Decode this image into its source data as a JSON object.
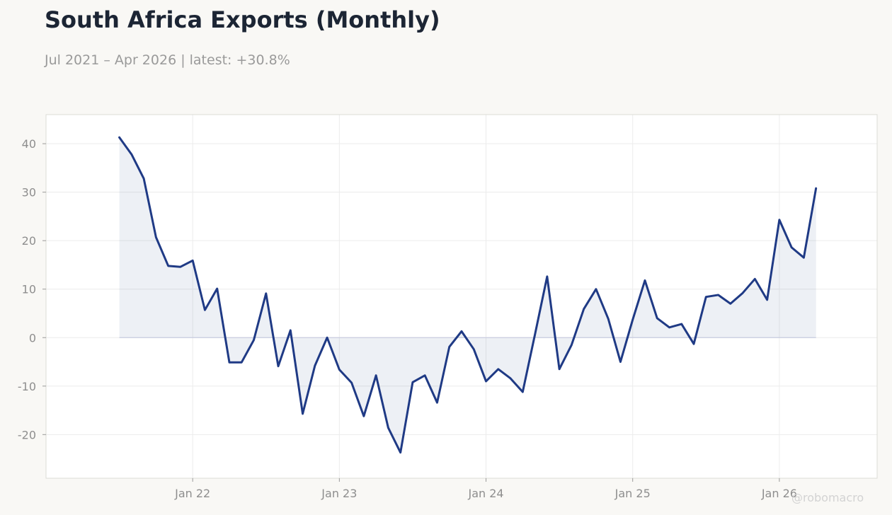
{
  "title": "South Africa Exports (Monthly)",
  "subtitle": "Jul 2021 – Apr 2026 | latest: +30.8%",
  "watermark": "@robomacro",
  "colors": {
    "line": "#1f3a85",
    "fill": "#1f3a85",
    "grid": "#ececec",
    "zero": "#c9cce0",
    "frame": "#dcdcd6",
    "plot_bg": "#ffffff"
  },
  "chart_data": {
    "type": "area",
    "title": "South Africa Exports (Monthly)",
    "subtitle": "Jul 2021 – Apr 2026 | latest: +30.8%",
    "xlabel": "",
    "ylabel": "",
    "x_start": "2021-07",
    "x_end": "2026-04",
    "xlim": [
      "2021-01",
      "2026-09"
    ],
    "ylim": [
      -29,
      46
    ],
    "grid": true,
    "legend": "none",
    "x_ticks": [
      "Jan 22",
      "Jan 23",
      "Jan 24",
      "Jan 25",
      "Jan 26"
    ],
    "y_ticks": [
      -20,
      -10,
      0,
      10,
      20,
      30,
      40
    ],
    "series": [
      {
        "x": [
          "2021-07",
          "2021-08",
          "2021-09",
          "2021-10",
          "2021-11",
          "2021-12",
          "2022-01",
          "2022-02",
          "2022-03",
          "2022-04",
          "2022-05",
          "2022-06",
          "2022-07",
          "2022-08",
          "2022-09",
          "2022-10",
          "2022-11",
          "2022-12",
          "2023-01",
          "2023-02",
          "2023-03",
          "2023-04",
          "2023-05",
          "2023-06",
          "2023-07",
          "2023-08",
          "2023-09",
          "2023-10",
          "2023-11",
          "2023-12",
          "2024-01",
          "2024-02",
          "2024-03",
          "2024-04",
          "2024-05",
          "2024-06",
          "2024-07",
          "2024-08",
          "2024-09",
          "2024-10",
          "2024-11",
          "2024-12",
          "2025-01",
          "2025-02",
          "2025-03",
          "2025-04",
          "2025-05",
          "2025-06",
          "2025-07",
          "2025-08",
          "2025-09",
          "2025-10",
          "2025-11",
          "2025-12",
          "2026-01",
          "2026-02",
          "2026-03",
          "2026-04"
        ],
        "values": [
          41.3,
          37.8,
          32.8,
          20.7,
          14.8,
          14.6,
          15.9,
          5.7,
          10.1,
          -5.1,
          -5.1,
          -0.5,
          9.1,
          -5.9,
          1.5,
          -15.7,
          -5.8,
          0.0,
          -6.6,
          -9.3,
          -16.2,
          -7.8,
          -18.6,
          -23.7,
          -9.2,
          -7.8,
          -13.4,
          -1.9,
          1.3,
          -2.4,
          -9.0,
          -6.5,
          -8.4,
          -11.2,
          0.6,
          12.6,
          -6.5,
          -1.5,
          5.9,
          10.0,
          3.9,
          -5.0,
          3.7,
          11.8,
          4.0,
          2.1,
          2.8,
          -1.3,
          8.4,
          8.8,
          7.0,
          9.2,
          12.1,
          7.8,
          24.3,
          18.6,
          16.5,
          30.8
        ]
      }
    ]
  }
}
